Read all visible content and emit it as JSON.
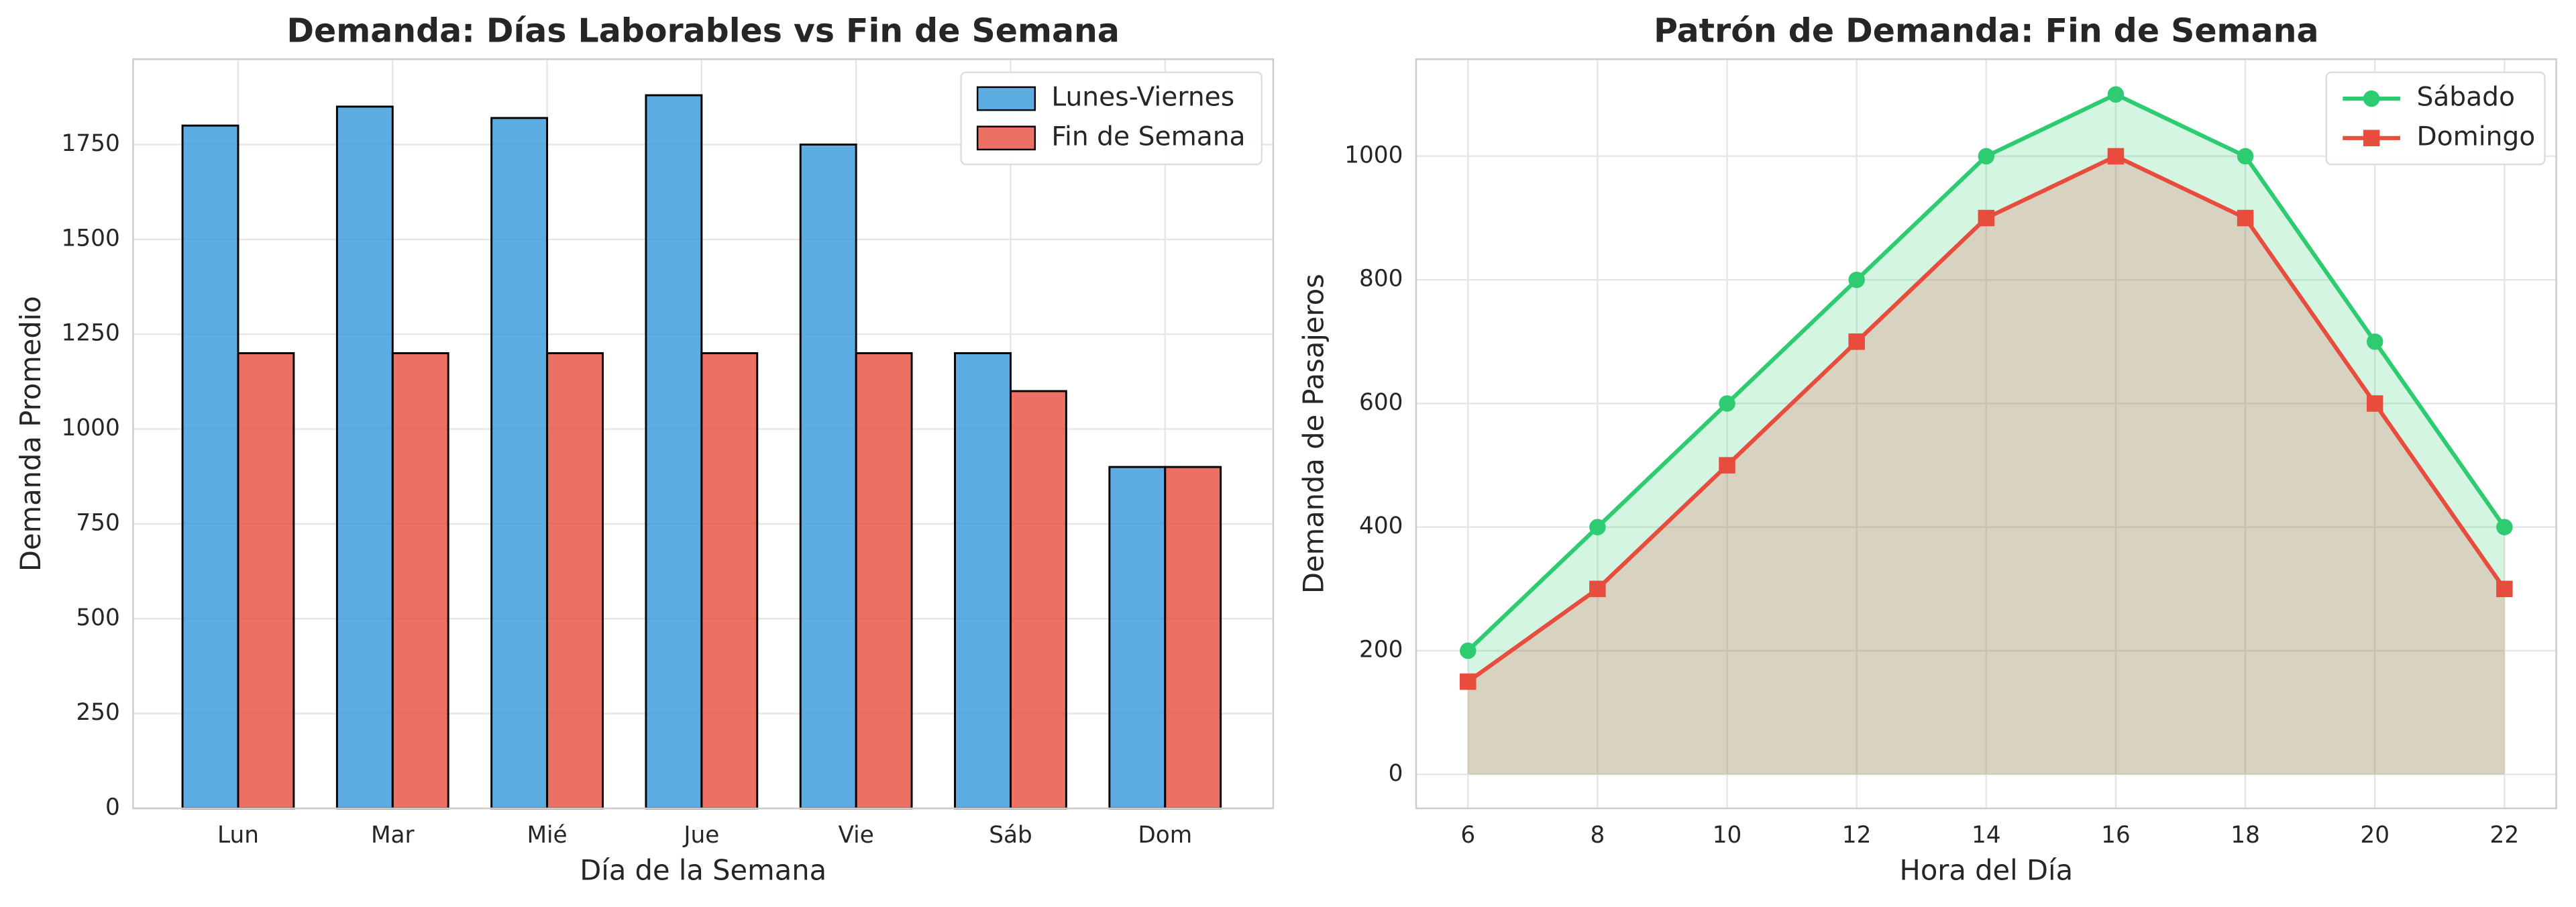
{
  "chart_data": [
    {
      "type": "bar",
      "title": "Demanda: Días Laborables vs Fin de Semana",
      "xlabel": "Día de la Semana",
      "ylabel": "Demanda Promedio",
      "categories": [
        "Lun",
        "Mar",
        "Mié",
        "Jue",
        "Vie",
        "Sáb",
        "Dom"
      ],
      "series": [
        {
          "name": "Lunes-Viernes",
          "color": "#3498db",
          "values": [
            1800,
            1850,
            1820,
            1880,
            1750,
            1200,
            900
          ]
        },
        {
          "name": "Fin de Semana",
          "color": "#e74c3c",
          "values": [
            1200,
            1200,
            1200,
            1200,
            1200,
            1100,
            900
          ]
        }
      ],
      "ylim": [
        0,
        1975
      ],
      "yticks": [
        0,
        250,
        500,
        750,
        1000,
        1250,
        1500,
        1750
      ],
      "grid": true,
      "legend": "upper right"
    },
    {
      "type": "line",
      "title": "Patrón de Demanda: Fin de Semana",
      "xlabel": "Hora del Día",
      "ylabel": "Demanda de Pasajeros",
      "x": [
        6,
        8,
        10,
        12,
        14,
        16,
        18,
        20,
        22
      ],
      "series": [
        {
          "name": "Sábado",
          "color": "#2ecc71",
          "marker": "circle",
          "values": [
            200,
            400,
            600,
            800,
            1000,
            1100,
            1000,
            700,
            400
          ]
        },
        {
          "name": "Domingo",
          "color": "#e74c3c",
          "marker": "square",
          "values": [
            150,
            300,
            500,
            700,
            900,
            1000,
            900,
            600,
            300
          ]
        }
      ],
      "xlim": [
        5.2,
        22.8
      ],
      "xticks": [
        6,
        8,
        10,
        12,
        14,
        16,
        18,
        20,
        22
      ],
      "ylim": [
        -55,
        1157
      ],
      "yticks": [
        0,
        200,
        400,
        600,
        800,
        1000
      ],
      "grid": true,
      "fill": true,
      "legend": "upper right"
    }
  ]
}
